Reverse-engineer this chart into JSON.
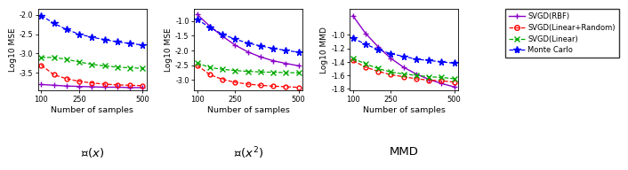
{
  "x_vals": [
    100,
    150,
    200,
    250,
    300,
    350,
    400,
    450,
    500
  ],
  "subplot_titles": [
    "$\\mathbb{E}(x)$",
    "$\\mathbb{E}(x^2)$",
    "MMD"
  ],
  "ylabel1": "Log10 MSE",
  "ylabel2": "Log10 MSE",
  "ylabel3": "Log10 MMD",
  "xlabel": "Number of samples",
  "legend_labels": [
    "SVGD(RBF)",
    "SVGD(Linear+Random)",
    "SVGD(Linear)",
    "Monte Carlo"
  ],
  "colors": [
    "#8B00C8",
    "#FF0000",
    "#00AA00",
    "#0000FF"
  ],
  "panel1": {
    "svgd_rbf": [
      -3.8,
      -3.82,
      -3.84,
      -3.85,
      -3.86,
      -3.87,
      -3.87,
      -3.88,
      -3.88
    ],
    "svgd_linrand": [
      -3.3,
      -3.55,
      -3.65,
      -3.72,
      -3.76,
      -3.79,
      -3.81,
      -3.82,
      -3.83
    ],
    "svgd_lin": [
      -3.1,
      -3.1,
      -3.15,
      -3.22,
      -3.28,
      -3.32,
      -3.35,
      -3.37,
      -3.38
    ],
    "monte_carlo": [
      -2.02,
      -2.22,
      -2.38,
      -2.5,
      -2.58,
      -2.64,
      -2.7,
      -2.74,
      -2.78
    ]
  },
  "panel2": {
    "svgd_rbf": [
      -0.78,
      -1.18,
      -1.52,
      -1.82,
      -2.05,
      -2.22,
      -2.35,
      -2.44,
      -2.52
    ],
    "svgd_linrand": [
      -2.5,
      -2.82,
      -2.98,
      -3.08,
      -3.14,
      -3.18,
      -3.21,
      -3.23,
      -3.25
    ],
    "svgd_lin": [
      -2.42,
      -2.58,
      -2.64,
      -2.68,
      -2.71,
      -2.73,
      -2.74,
      -2.75,
      -2.76
    ],
    "monte_carlo": [
      -0.95,
      -1.22,
      -1.45,
      -1.62,
      -1.75,
      -1.85,
      -1.93,
      -2.0,
      -2.06
    ]
  },
  "panel3": {
    "svgd_rbf": [
      -0.72,
      -0.98,
      -1.18,
      -1.35,
      -1.48,
      -1.58,
      -1.66,
      -1.72,
      -1.77
    ],
    "svgd_linrand": [
      -1.38,
      -1.48,
      -1.54,
      -1.59,
      -1.62,
      -1.65,
      -1.67,
      -1.68,
      -1.7
    ],
    "svgd_lin": [
      -1.35,
      -1.43,
      -1.5,
      -1.55,
      -1.58,
      -1.6,
      -1.62,
      -1.63,
      -1.65
    ],
    "monte_carlo": [
      -1.05,
      -1.14,
      -1.22,
      -1.28,
      -1.32,
      -1.36,
      -1.38,
      -1.4,
      -1.42
    ]
  },
  "panel1_ylim": [
    -3.95,
    -1.85
  ],
  "panel2_ylim": [
    -3.35,
    -0.6
  ],
  "panel3_ylim": [
    -1.82,
    -0.62
  ],
  "panel1_yticks": [
    -3.5,
    -3.0,
    -2.5,
    -2.0
  ],
  "panel2_yticks": [
    -3.0,
    -2.5,
    -2.0,
    -1.5,
    -1.0
  ],
  "panel3_yticks": [
    -1.8,
    -1.6,
    -1.4,
    -1.2,
    -1.0
  ],
  "xticks": [
    100,
    250,
    500
  ]
}
